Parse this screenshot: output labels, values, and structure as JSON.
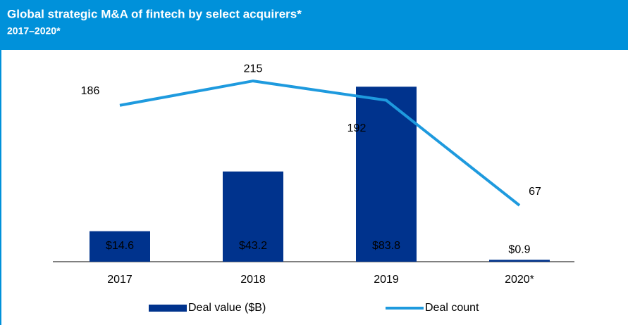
{
  "chart_data": {
    "type": "combo",
    "title": "Global strategic M&A of fintech by select acquirers*",
    "subtitle": "2017–2020*",
    "categories": [
      "2017",
      "2018",
      "2019",
      "2020*"
    ],
    "series": [
      {
        "name": "Deal value ($B)",
        "type": "bar",
        "color": "#00338d",
        "values": [
          14.6,
          43.2,
          83.8,
          0.9
        ],
        "value_labels": [
          "$14.6",
          "$43.2",
          "$83.8",
          "$0.9"
        ]
      },
      {
        "name": "Deal count",
        "type": "line",
        "axis": "y2",
        "color": "#1e9ade",
        "values": [
          186,
          215,
          192,
          67
        ]
      }
    ],
    "ylim": [
      0,
      95
    ],
    "y2lim": [
      0,
      236
    ],
    "grid": false,
    "legend": "bottom"
  }
}
